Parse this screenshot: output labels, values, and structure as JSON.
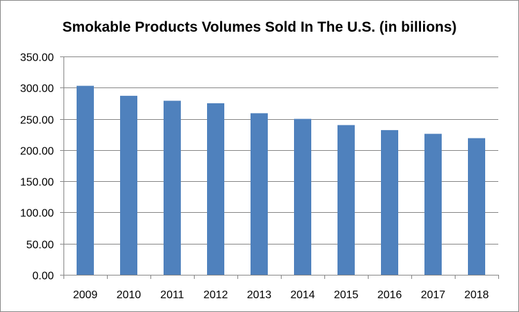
{
  "chart_data": {
    "type": "bar",
    "title": "Smokable Products Volumes Sold In The U.S. (in billions)",
    "xlabel": "",
    "ylabel": "",
    "categories": [
      "2009",
      "2010",
      "2011",
      "2012",
      "2013",
      "2014",
      "2015",
      "2016",
      "2017",
      "2018"
    ],
    "values": [
      303,
      287,
      279,
      275,
      259,
      250,
      240,
      232,
      226,
      219
    ],
    "ylim": [
      0,
      350
    ],
    "yticks": [
      "0.00",
      "50.00",
      "100.00",
      "150.00",
      "200.00",
      "250.00",
      "300.00",
      "350.00"
    ],
    "grid": true,
    "legend": "none",
    "bar_color": "#4F81BD",
    "grid_color": "#868686"
  }
}
